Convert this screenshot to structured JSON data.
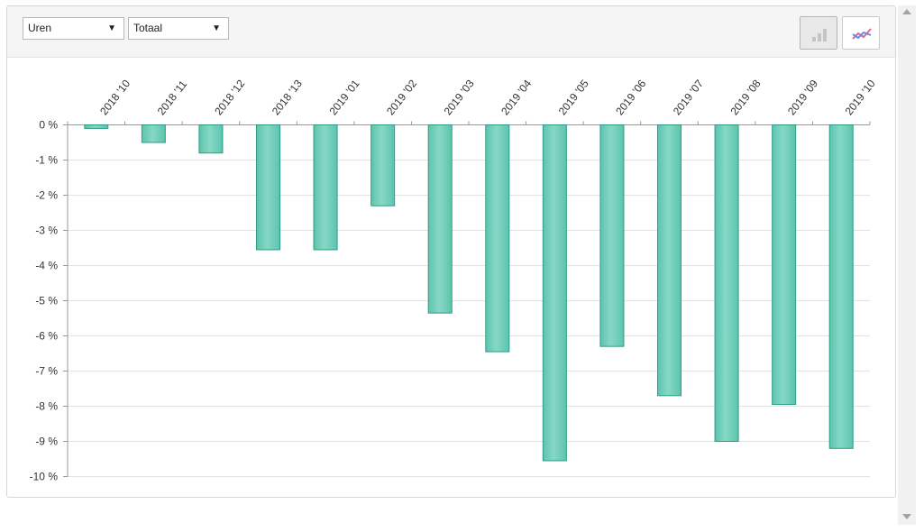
{
  "controls": {
    "metric_select": "Uren",
    "scope_select": "Totaal",
    "bar_view_icon": "bar-chart-icon",
    "line_view_icon": "line-chart-icon"
  },
  "colors": {
    "bar_fill": "#5cc4ad",
    "bar_light": "#86d8c6",
    "bar_stroke": "#2f9c83",
    "grid": "#e2e2e2",
    "axis": "#999999",
    "text": "#333333"
  },
  "chart_data": {
    "type": "bar",
    "title": "",
    "xlabel": "",
    "ylabel": "",
    "categories": [
      "2018 '10",
      "2018 '11",
      "2018 '12",
      "2018 '13",
      "2019 '01",
      "2019 '02",
      "2019 '03",
      "2019 '04",
      "2019 '05",
      "2019 '06",
      "2019 '07",
      "2019 '08",
      "2019 '09",
      "2019 '10"
    ],
    "series": [
      {
        "values": [
          -0.1,
          -0.5,
          -0.8,
          -3.55,
          -3.55,
          -2.3,
          -5.35,
          -6.45,
          -9.55,
          -6.3,
          -7.7,
          -9.0,
          -7.95,
          -9.2
        ]
      }
    ],
    "ylim": [
      -10,
      0
    ],
    "yticks": [
      0,
      -1,
      -2,
      -3,
      -4,
      -5,
      -6,
      -7,
      -8,
      -9,
      -10
    ],
    "ytick_labels": [
      "0 %",
      "-1 %",
      "-2 %",
      "-3 %",
      "-4 %",
      "-5 %",
      "-6 %",
      "-7 %",
      "-8 %",
      "-9 %",
      "-10 %"
    ],
    "grid": true,
    "legend": "none"
  }
}
